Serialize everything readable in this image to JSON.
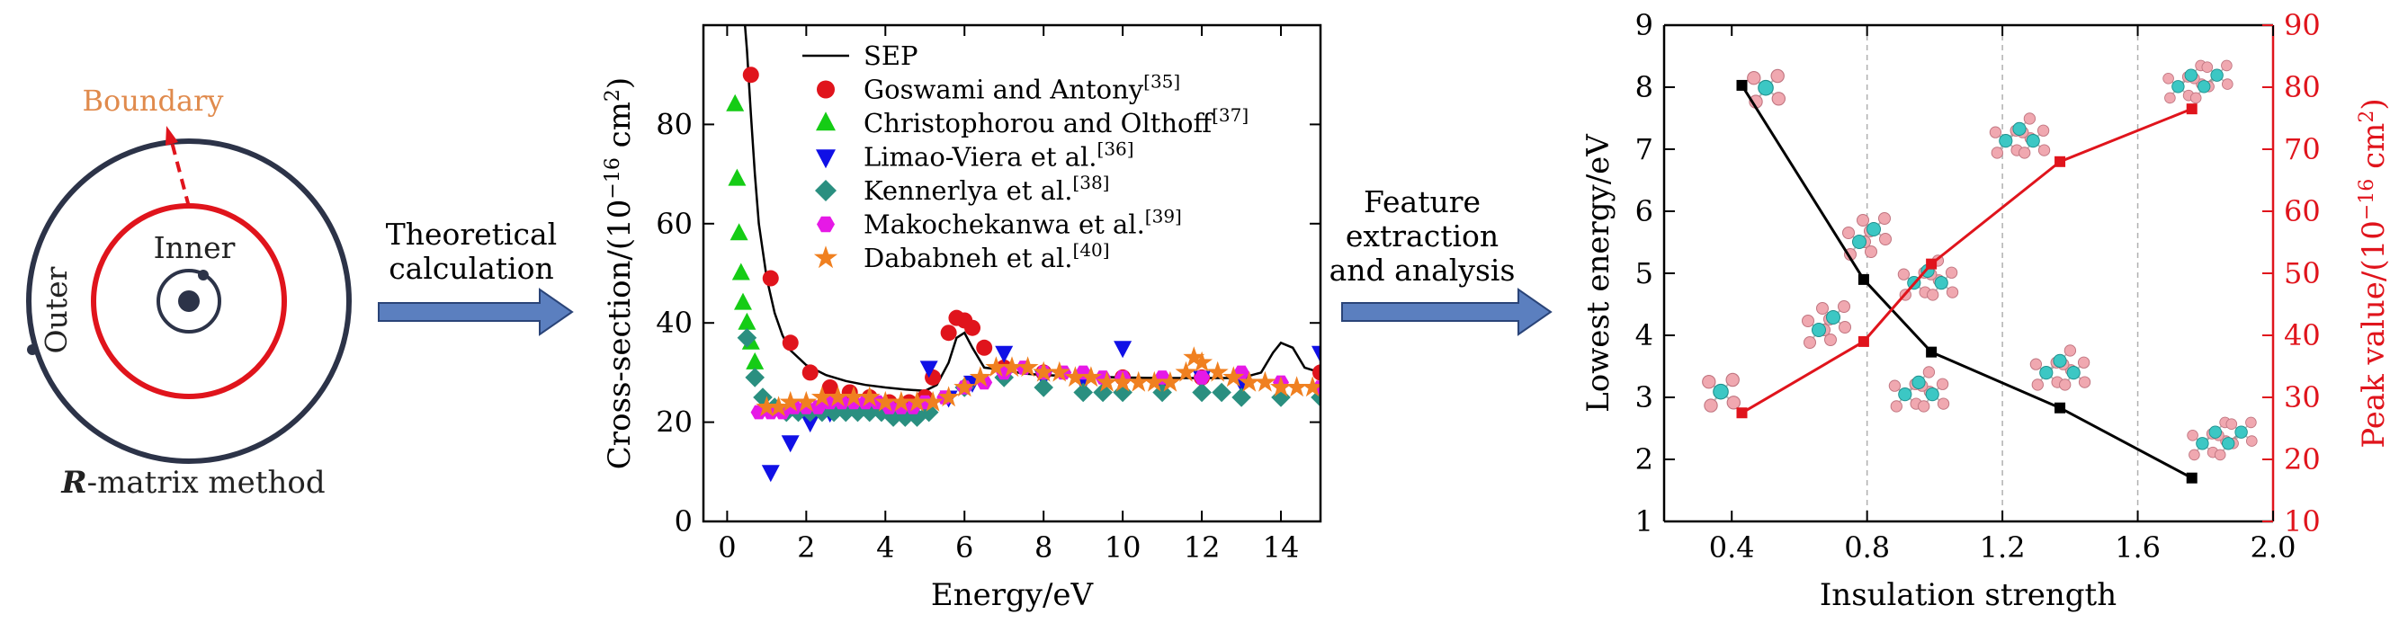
{
  "panel_a": {
    "boundary_label": "Boundary",
    "inner_label": "Inner",
    "outer_label": "Outer",
    "method_bold": "R",
    "method_rest": "-matrix method",
    "colors": {
      "circle_outer": "#2c3348",
      "circle_inner": "#e0141c",
      "boundary_text": "#e08a4c",
      "arrow_dash": "#e0141c"
    }
  },
  "arrow1": {
    "line1": "Theoretical",
    "line2": "calculation",
    "color": "#5b7fbf"
  },
  "arrow2": {
    "line1": "Feature",
    "line2": "extraction",
    "line3": "and analysis",
    "color": "#5b7fbf"
  },
  "chart_data": [
    {
      "type": "scatter",
      "xlabel": "Energy/eV",
      "ylabel_main": "Cross-section/(10",
      "ylabel_sup": "−16",
      "ylabel_unit": " cm",
      "ylabel_sup2": "2",
      "ylabel_close": ")",
      "xlim": [
        -0.6,
        15
      ],
      "ylim": [
        0,
        100
      ],
      "xticks": [
        0,
        2,
        4,
        6,
        8,
        10,
        12,
        14
      ],
      "yticks": [
        0,
        20,
        40,
        60,
        80
      ],
      "grid": false,
      "legend_placement": "top-center",
      "series": [
        {
          "name": "SEP",
          "ref": "",
          "marker": "line",
          "color": "#000000",
          "points": [
            [
              0.45,
              100
            ],
            [
              0.5,
              95
            ],
            [
              0.6,
              82
            ],
            [
              0.7,
              70
            ],
            [
              0.8,
              60
            ],
            [
              1.0,
              49
            ],
            [
              1.2,
              42
            ],
            [
              1.4,
              37.5
            ],
            [
              1.6,
              34.5
            ],
            [
              2.0,
              31.5
            ],
            [
              2.5,
              29.5
            ],
            [
              3.0,
              28.3
            ],
            [
              3.5,
              27.5
            ],
            [
              4.0,
              27
            ],
            [
              4.5,
              26.6
            ],
            [
              5.0,
              26.3
            ],
            [
              5.3,
              27.5
            ],
            [
              5.6,
              32
            ],
            [
              5.8,
              37
            ],
            [
              6.0,
              38
            ],
            [
              6.2,
              35
            ],
            [
              6.5,
              31
            ],
            [
              7.0,
              30.5
            ],
            [
              7.5,
              29.8
            ],
            [
              8.0,
              29.5
            ],
            [
              9.0,
              29.2
            ],
            [
              10.0,
              29
            ],
            [
              11.0,
              28.9
            ],
            [
              12.0,
              28.9
            ],
            [
              13.0,
              28.9
            ],
            [
              13.5,
              30
            ],
            [
              13.8,
              34
            ],
            [
              14.0,
              36
            ],
            [
              14.3,
              35
            ],
            [
              14.6,
              31
            ],
            [
              15.0,
              30
            ]
          ]
        },
        {
          "name": "Goswami and Antony",
          "ref": "[35]",
          "marker": "circle",
          "color": "#e0141c",
          "points": [
            [
              0.6,
              90
            ],
            [
              1.1,
              49
            ],
            [
              1.6,
              36
            ],
            [
              2.1,
              30
            ],
            [
              2.6,
              27
            ],
            [
              3.1,
              26
            ],
            [
              3.6,
              25
            ],
            [
              4.1,
              24
            ],
            [
              4.6,
              24
            ],
            [
              5.0,
              25
            ],
            [
              5.2,
              29
            ],
            [
              5.6,
              38
            ],
            [
              5.8,
              41
            ],
            [
              6.0,
              40.5
            ],
            [
              6.2,
              39
            ],
            [
              6.5,
              35
            ],
            [
              7.0,
              31
            ],
            [
              8.0,
              30
            ],
            [
              9.0,
              29.5
            ],
            [
              10.0,
              29
            ],
            [
              12.0,
              29
            ],
            [
              15.0,
              30
            ]
          ]
        },
        {
          "name": "Christophorou and Olthoff",
          "ref": "[37]",
          "marker": "triangle-up",
          "color": "#15cc15",
          "points": [
            [
              0.2,
              84
            ],
            [
              0.25,
              69
            ],
            [
              0.3,
              58
            ],
            [
              0.35,
              50
            ],
            [
              0.4,
              44
            ],
            [
              0.5,
              40
            ],
            [
              0.6,
              36
            ],
            [
              0.7,
              32
            ]
          ]
        },
        {
          "name": "Limao-Viera et al.",
          "ref": "[36]",
          "marker": "triangle-down",
          "color": "#1010e6",
          "points": [
            [
              1.1,
              10
            ],
            [
              1.6,
              16
            ],
            [
              2.1,
              20
            ],
            [
              2.6,
              22
            ],
            [
              3.1,
              23
            ],
            [
              3.6,
              23
            ],
            [
              4.1,
              22
            ],
            [
              4.6,
              22
            ],
            [
              5.1,
              31
            ],
            [
              5.6,
              25
            ],
            [
              6.2,
              28
            ],
            [
              7.0,
              34
            ],
            [
              8.0,
              29
            ],
            [
              9.0,
              28
            ],
            [
              10.0,
              35
            ],
            [
              11.0,
              28
            ],
            [
              12.0,
              29
            ],
            [
              13.0,
              28
            ],
            [
              15.0,
              34
            ]
          ]
        },
        {
          "name": "Kennerlya et al.",
          "ref": "[38]",
          "marker": "diamond",
          "color": "#2a8f80",
          "points": [
            [
              0.5,
              37
            ],
            [
              0.7,
              29
            ],
            [
              0.9,
              25
            ],
            [
              1.2,
              23
            ],
            [
              1.5,
              22
            ],
            [
              1.8,
              22
            ],
            [
              2.1,
              22
            ],
            [
              2.4,
              22
            ],
            [
              2.7,
              22
            ],
            [
              3.0,
              22
            ],
            [
              3.3,
              22
            ],
            [
              3.6,
              22
            ],
            [
              3.9,
              22
            ],
            [
              4.2,
              21
            ],
            [
              4.5,
              21
            ],
            [
              4.8,
              21
            ],
            [
              5.1,
              22
            ],
            [
              6.0,
              27
            ],
            [
              7.0,
              29
            ],
            [
              8.0,
              27
            ],
            [
              9.0,
              26
            ],
            [
              9.5,
              26
            ],
            [
              10.0,
              26
            ],
            [
              11.0,
              26
            ],
            [
              12.0,
              26
            ],
            [
              12.5,
              26
            ],
            [
              13.0,
              25
            ],
            [
              14.0,
              25
            ],
            [
              15.0,
              25
            ]
          ]
        },
        {
          "name": "Makochekanwa et al.",
          "ref": "[39]",
          "marker": "hexagon",
          "color": "#e619e6",
          "points": [
            [
              0.8,
              22
            ],
            [
              1.1,
              22
            ],
            [
              1.4,
              22
            ],
            [
              1.7,
              23
            ],
            [
              2.0,
              23
            ],
            [
              2.3,
              23
            ],
            [
              2.6,
              24
            ],
            [
              2.9,
              24
            ],
            [
              3.2,
              24
            ],
            [
              3.5,
              24
            ],
            [
              3.8,
              24
            ],
            [
              4.1,
              23
            ],
            [
              4.4,
              23
            ],
            [
              4.7,
              23
            ],
            [
              5.0,
              24
            ],
            [
              5.5,
              25
            ],
            [
              6.0,
              27
            ],
            [
              6.5,
              28
            ],
            [
              7.0,
              30
            ],
            [
              7.5,
              31
            ],
            [
              8.0,
              30
            ],
            [
              8.5,
              30
            ],
            [
              9.0,
              30
            ],
            [
              9.5,
              29
            ],
            [
              10.0,
              29
            ],
            [
              11.0,
              29
            ],
            [
              12.0,
              29
            ],
            [
              13.0,
              30
            ],
            [
              14.0,
              28
            ],
            [
              15.0,
              27
            ]
          ]
        },
        {
          "name": "Dababneh et al.",
          "ref": "[40]",
          "marker": "star",
          "color": "#f08020",
          "points": [
            [
              1.0,
              23
            ],
            [
              1.3,
              23
            ],
            [
              1.6,
              24
            ],
            [
              2.0,
              24
            ],
            [
              2.4,
              25
            ],
            [
              2.8,
              25
            ],
            [
              3.2,
              25
            ],
            [
              3.6,
              25
            ],
            [
              4.0,
              24
            ],
            [
              4.4,
              24
            ],
            [
              4.8,
              24
            ],
            [
              5.2,
              24
            ],
            [
              5.6,
              25
            ],
            [
              6.0,
              27
            ],
            [
              6.4,
              29
            ],
            [
              6.8,
              31
            ],
            [
              7.2,
              31
            ],
            [
              7.6,
              31
            ],
            [
              8.0,
              30
            ],
            [
              8.4,
              30
            ],
            [
              8.8,
              29
            ],
            [
              9.2,
              29
            ],
            [
              9.6,
              28
            ],
            [
              10.0,
              28
            ],
            [
              10.4,
              28
            ],
            [
              10.8,
              28
            ],
            [
              11.2,
              28
            ],
            [
              11.6,
              30
            ],
            [
              11.8,
              33
            ],
            [
              12.0,
              32
            ],
            [
              12.4,
              30
            ],
            [
              12.8,
              29
            ],
            [
              13.2,
              28
            ],
            [
              13.6,
              28
            ],
            [
              14.0,
              27
            ],
            [
              14.4,
              27
            ],
            [
              14.8,
              27
            ]
          ]
        }
      ]
    },
    {
      "type": "line",
      "xlabel": "Insulation strength",
      "ylabel_left": "Lowest energy/eV",
      "ylabel_right_main": "Peak value/(10",
      "ylabel_right_sup": "−16",
      "ylabel_right_unit": " cm",
      "ylabel_right_sup2": "2",
      "ylabel_right_close": ")",
      "xlim": [
        0.2,
        2.0
      ],
      "ylim_left": [
        1,
        9
      ],
      "ylim_right": [
        10,
        90
      ],
      "xticks": [
        0.4,
        0.8,
        1.2,
        1.6,
        2.0
      ],
      "xtick_labels": [
        "0.4",
        "0.8",
        "1.2",
        "1.6",
        "2.0"
      ],
      "yticks_left": [
        1,
        2,
        3,
        4,
        5,
        6,
        7,
        8,
        9
      ],
      "yticks_right": [
        10,
        20,
        30,
        40,
        50,
        60,
        70,
        80,
        90
      ],
      "grid": true,
      "series": [
        {
          "name": "",
          "axis": "left",
          "marker": "square",
          "color": "#000000",
          "x": [
            0.43,
            0.79,
            0.99,
            1.37,
            1.76
          ],
          "y": [
            8.03,
            4.9,
            3.73,
            2.83,
            1.7
          ]
        },
        {
          "name": "",
          "axis": "right",
          "marker": "square",
          "color": "#e0141c",
          "x": [
            0.43,
            0.79,
            0.99,
            1.37,
            1.76
          ],
          "y": [
            27.5,
            39,
            51.5,
            68,
            76.5
          ]
        }
      ],
      "molecule_icons": [
        "ball-stick-molecule-icon"
      ]
    }
  ]
}
